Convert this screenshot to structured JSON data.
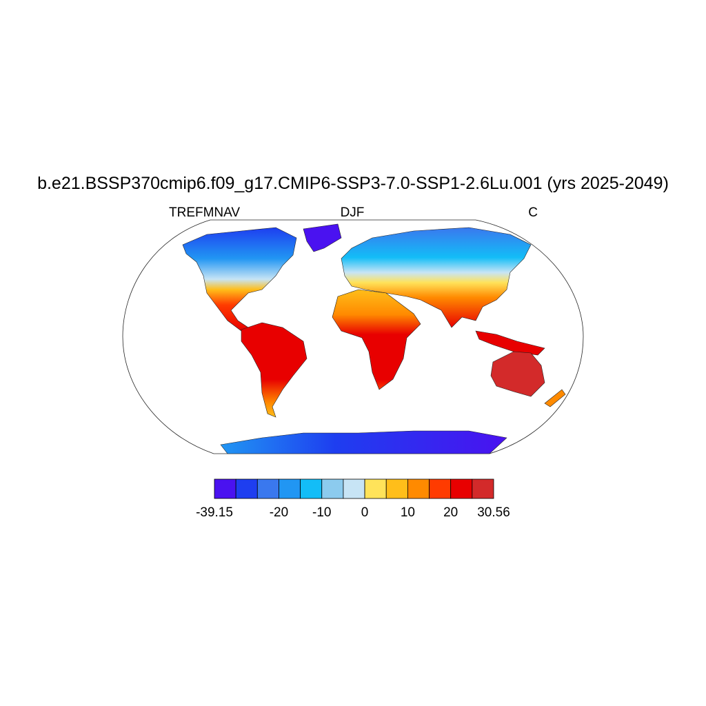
{
  "title": "b.e21.BSSP370cmip6.f09_g17.CMIP6-SSP3-7.0-SSP1-2.6Lu.001 (yrs 2025-2049)",
  "left_label": "TREFMNAV",
  "center_label": "DJF",
  "right_label": "C",
  "colorbar": {
    "colors": [
      "#4a12f0",
      "#1e3ef0",
      "#3a78ee",
      "#2196f3",
      "#13bdf7",
      "#8ccbee",
      "#c7e4f5",
      "#ffe35a",
      "#ffbe1a",
      "#ff8a00",
      "#ff3b00",
      "#e80000",
      "#d32a2a"
    ],
    "levels": [
      -39.15,
      null,
      null,
      -20,
      null,
      -10,
      null,
      0,
      null,
      10,
      null,
      20,
      null,
      30.56
    ]
  }
}
